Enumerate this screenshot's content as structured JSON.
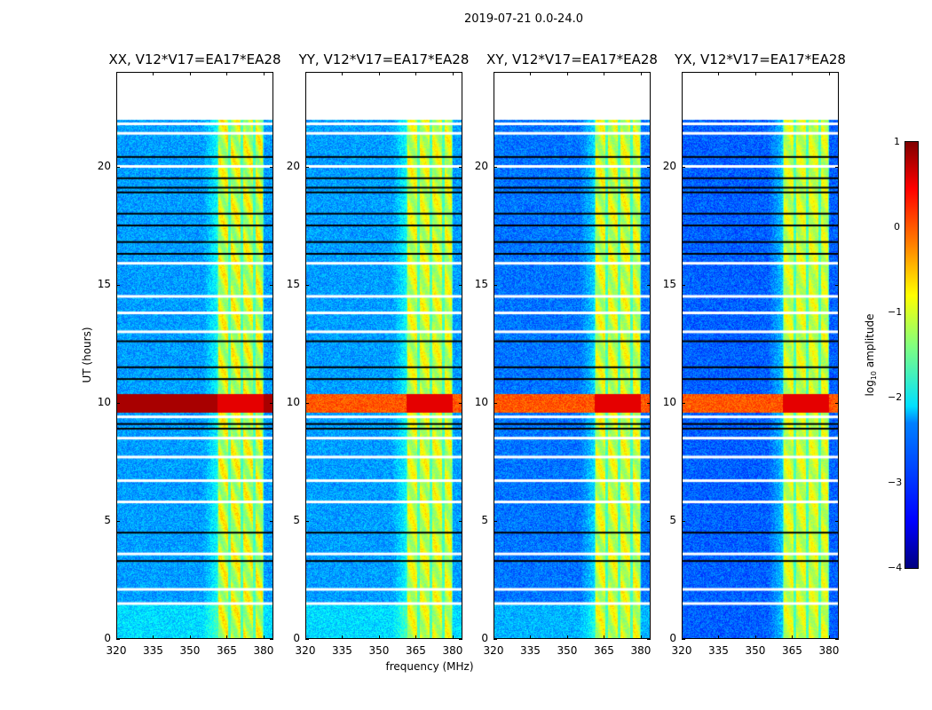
{
  "chart_data": {
    "type": "heatmap",
    "title": "2019-07-21 0.0-24.0",
    "xlabel": "frequency (MHz)",
    "ylabel": "UT (hours)",
    "xlim": [
      320,
      384
    ],
    "ylim": [
      0,
      24
    ],
    "xticks": [
      320,
      335,
      350,
      365,
      380
    ],
    "yticks": [
      0,
      5,
      10,
      15,
      20
    ],
    "panels": [
      {
        "title": "XX, V12*V17=EA17*EA28",
        "baseline_level": -2.6,
        "rfi_strength": 1.0
      },
      {
        "title": "YY, V12*V17=EA17*EA28",
        "baseline_level": -2.6,
        "rfi_strength": 0.8
      },
      {
        "title": "XY, V12*V17=EA17*EA28",
        "baseline_level": -2.8,
        "rfi_strength": 0.8
      },
      {
        "title": "YX, V12*V17=EA17*EA28",
        "baseline_level": -2.9,
        "rfi_strength": 0.6
      }
    ],
    "data_end_hour": 22.0,
    "rfi_band_mhz": [
      361,
      380
    ],
    "subband_edges_mhz": [
      361,
      366,
      371,
      376,
      380
    ],
    "strong_rfi_hours": [
      9.6,
      10.4
    ],
    "flagged_white_hours": [
      1.5,
      2.1,
      3.6,
      5.8,
      6.7,
      7.7,
      8.5,
      9.4,
      13.0,
      13.8,
      14.5,
      15.9,
      20.0,
      21.4,
      21.8
    ],
    "flagged_black_hours": [
      3.3,
      4.5,
      8.9,
      9.1,
      11.0,
      11.5,
      12.6,
      16.3,
      16.8,
      17.5,
      18.0,
      18.9,
      19.1,
      19.5,
      20.4
    ],
    "colorbar": {
      "label": "log10 amplitude",
      "range": [
        -4,
        1
      ],
      "ticks": [
        "1",
        "0",
        "−1",
        "−2",
        "−3",
        "−4"
      ]
    }
  }
}
